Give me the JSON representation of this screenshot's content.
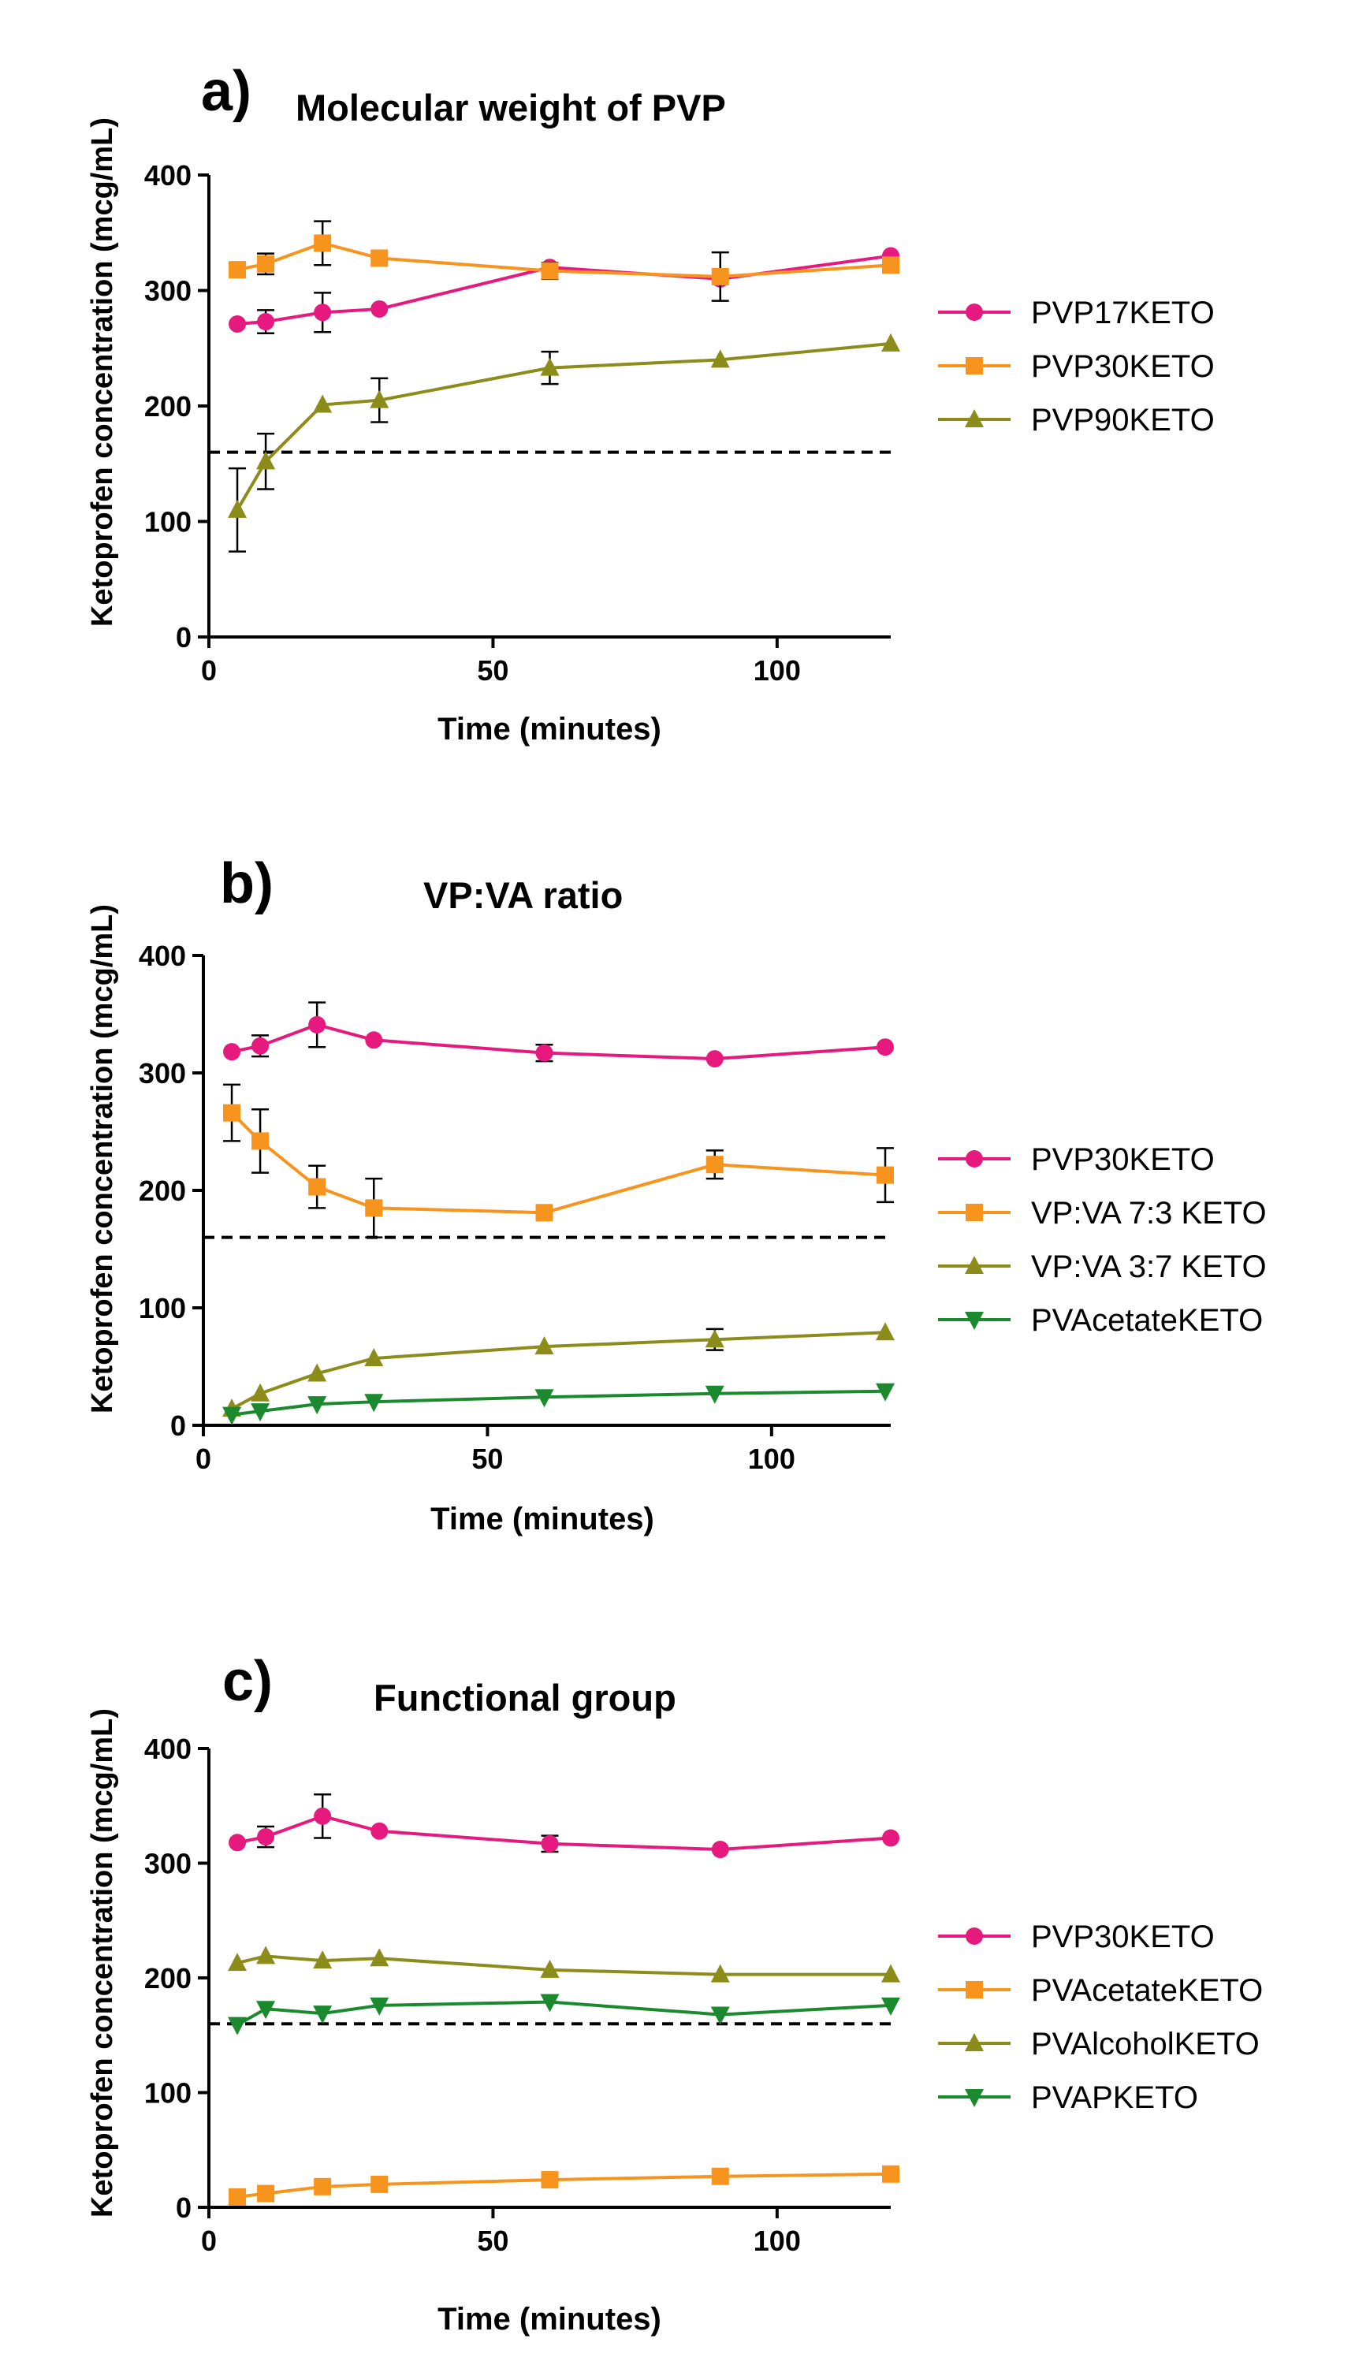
{
  "chart_data": [
    {
      "type": "line",
      "panel_label": "a)",
      "title": "Molecular weight of PVP",
      "xlabel": "Time (minutes)",
      "ylabel": "Ketoprofen concentration (mcg/mL)",
      "xlim": [
        0,
        120
      ],
      "ylim": [
        0,
        400
      ],
      "xticks": [
        0,
        50,
        100
      ],
      "yticks": [
        0,
        100,
        200,
        300,
        400
      ],
      "reference_line": 160,
      "series": [
        {
          "name": "PVP17KETO",
          "color": "#E6197E",
          "marker": "circle",
          "x": [
            5,
            10,
            20,
            30,
            60,
            90,
            120
          ],
          "y": [
            271,
            273,
            281,
            284,
            320,
            310,
            330
          ],
          "err": [
            0,
            10,
            17,
            0,
            0,
            0,
            0
          ]
        },
        {
          "name": "PVP30KETO",
          "color": "#F7941D",
          "marker": "square",
          "x": [
            5,
            10,
            20,
            30,
            60,
            90,
            120
          ],
          "y": [
            318,
            323,
            341,
            328,
            317,
            312,
            322
          ],
          "err": [
            0,
            9,
            19,
            0,
            7,
            21,
            0
          ]
        },
        {
          "name": "PVP90KETO",
          "color": "#8C8C1A",
          "marker": "triangle-up",
          "x": [
            5,
            10,
            20,
            30,
            60,
            90,
            120
          ],
          "y": [
            110,
            152,
            201,
            205,
            233,
            240,
            254
          ],
          "err": [
            36,
            24,
            0,
            19,
            14,
            0,
            0
          ]
        }
      ]
    },
    {
      "type": "line",
      "panel_label": "b)",
      "title": "VP:VA ratio",
      "xlabel": "Time (minutes)",
      "ylabel": "Ketoprofen concentration (mcg/mL)",
      "xlim": [
        0,
        120
      ],
      "ylim": [
        0,
        400
      ],
      "xticks": [
        0,
        50,
        100
      ],
      "yticks": [
        0,
        100,
        200,
        300,
        400
      ],
      "reference_line": 160,
      "series": [
        {
          "name": "PVP30KETO",
          "color": "#E6197E",
          "marker": "circle",
          "x": [
            5,
            10,
            20,
            30,
            60,
            90,
            120
          ],
          "y": [
            318,
            323,
            341,
            328,
            317,
            312,
            322
          ],
          "err": [
            0,
            9,
            19,
            0,
            7,
            0,
            0
          ]
        },
        {
          "name": "VP:VA 7:3 KETO",
          "color": "#F7941D",
          "marker": "square",
          "x": [
            5,
            10,
            20,
            30,
            60,
            90,
            120
          ],
          "y": [
            266,
            242,
            203,
            185,
            181,
            222,
            213
          ],
          "err": [
            24,
            27,
            18,
            25,
            0,
            12,
            23
          ]
        },
        {
          "name": "VP:VA 3:7 KETO",
          "color": "#8C8C1A",
          "marker": "triangle-up",
          "x": [
            5,
            10,
            20,
            30,
            60,
            90,
            120
          ],
          "y": [
            14,
            27,
            44,
            57,
            67,
            73,
            79
          ],
          "err": [
            0,
            0,
            0,
            0,
            0,
            9,
            0
          ]
        },
        {
          "name": "PVAcetateKETO",
          "color": "#1B8A2E",
          "marker": "triangle-down",
          "x": [
            5,
            10,
            20,
            30,
            60,
            90,
            120
          ],
          "y": [
            9,
            12,
            18,
            20,
            24,
            27,
            29
          ],
          "err": [
            0,
            0,
            0,
            0,
            0,
            0,
            0
          ]
        }
      ]
    },
    {
      "type": "line",
      "panel_label": "c)",
      "title": "Functional group",
      "xlabel": "Time (minutes)",
      "ylabel": "Ketoprofen concentration (mcg/mL)",
      "xlim": [
        0,
        120
      ],
      "ylim": [
        0,
        400
      ],
      "xticks": [
        0,
        50,
        100
      ],
      "yticks": [
        0,
        100,
        200,
        300,
        400
      ],
      "reference_line": 160,
      "series": [
        {
          "name": "PVP30KETO",
          "color": "#E6197E",
          "marker": "circle",
          "x": [
            5,
            10,
            20,
            30,
            60,
            90,
            120
          ],
          "y": [
            318,
            323,
            341,
            328,
            317,
            312,
            322
          ],
          "err": [
            0,
            9,
            19,
            0,
            7,
            0,
            0
          ]
        },
        {
          "name": "PVAcetateKETO",
          "color": "#F7941D",
          "marker": "square",
          "x": [
            5,
            10,
            20,
            30,
            60,
            90,
            120
          ],
          "y": [
            9,
            12,
            18,
            20,
            24,
            27,
            29
          ],
          "err": [
            0,
            0,
            0,
            0,
            0,
            0,
            0
          ]
        },
        {
          "name": "PVAlcoholKETO",
          "color": "#8C8C1A",
          "marker": "triangle-up",
          "x": [
            5,
            10,
            20,
            30,
            60,
            90,
            120
          ],
          "y": [
            213,
            219,
            215,
            217,
            207,
            203,
            203
          ],
          "err": [
            0,
            0,
            0,
            0,
            0,
            0,
            0
          ]
        },
        {
          "name": "PVAPKETO",
          "color": "#1B8A2E",
          "marker": "triangle-down",
          "x": [
            5,
            10,
            20,
            30,
            60,
            90,
            120
          ],
          "y": [
            159,
            173,
            169,
            176,
            179,
            168,
            176
          ],
          "err": [
            0,
            0,
            0,
            0,
            0,
            0,
            0
          ]
        }
      ]
    }
  ]
}
